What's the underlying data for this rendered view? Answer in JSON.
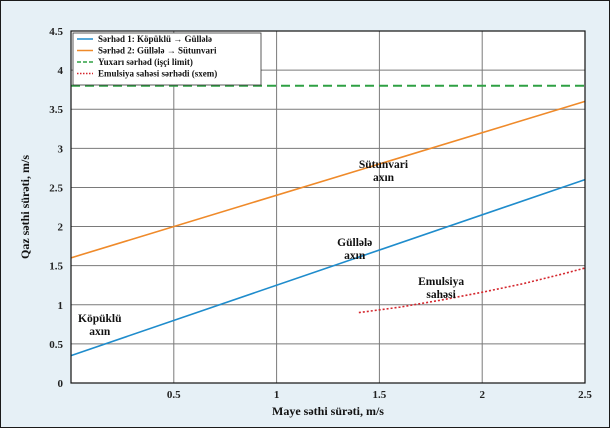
{
  "chart_data": {
    "type": "line",
    "xlabel": "Maye səthi sürəti, m/s",
    "ylabel": "Qaz səthi sürəti, m/s",
    "xlim": [
      0,
      2.5
    ],
    "ylim": [
      0,
      4.5
    ],
    "xticks": [
      0.5,
      1,
      1.5,
      2,
      2.5
    ],
    "yticks": [
      0,
      0.5,
      1,
      1.5,
      2,
      2.5,
      3,
      3.5,
      4,
      4.5
    ],
    "grid": true,
    "legend_position": "top-left",
    "series": [
      {
        "name": "Sərhəd 1: Köpüklü → Güllələ",
        "color": "#1f8ccc",
        "style": "solid",
        "x": [
          0,
          2.5
        ],
        "y": [
          0.35,
          2.6
        ]
      },
      {
        "name": "Sərhəd 2: Güllələ → Sütunvari",
        "color": "#ef8a2a",
        "style": "solid",
        "x": [
          0,
          2.5
        ],
        "y": [
          1.6,
          3.6
        ]
      },
      {
        "name": "Yuxarı sərhəd (işçi limit)",
        "color": "#2ea043",
        "style": "dashed",
        "x": [
          0,
          2.5
        ],
        "y": [
          3.8,
          3.8
        ]
      },
      {
        "name": "Emulsiya sahəsi sərhədi (sxem)",
        "color": "#d4272e",
        "style": "dotted",
        "x": [
          1.4,
          1.6,
          1.8,
          2.0,
          2.2,
          2.4,
          2.5
        ],
        "y": [
          0.9,
          0.97,
          1.06,
          1.16,
          1.27,
          1.4,
          1.47
        ]
      }
    ],
    "annotations": [
      {
        "lines": [
          "Sütunvari",
          "axın"
        ],
        "x": 1.52,
        "y": 2.75
      },
      {
        "lines": [
          "Güllələ",
          "axın"
        ],
        "x": 1.38,
        "y": 1.75
      },
      {
        "lines": [
          "Emulsiya",
          "sahəsi"
        ],
        "x": 1.8,
        "y": 1.25
      },
      {
        "lines": [
          "Köpüklü",
          "axın"
        ],
        "x": 0.14,
        "y": 0.78
      }
    ]
  }
}
